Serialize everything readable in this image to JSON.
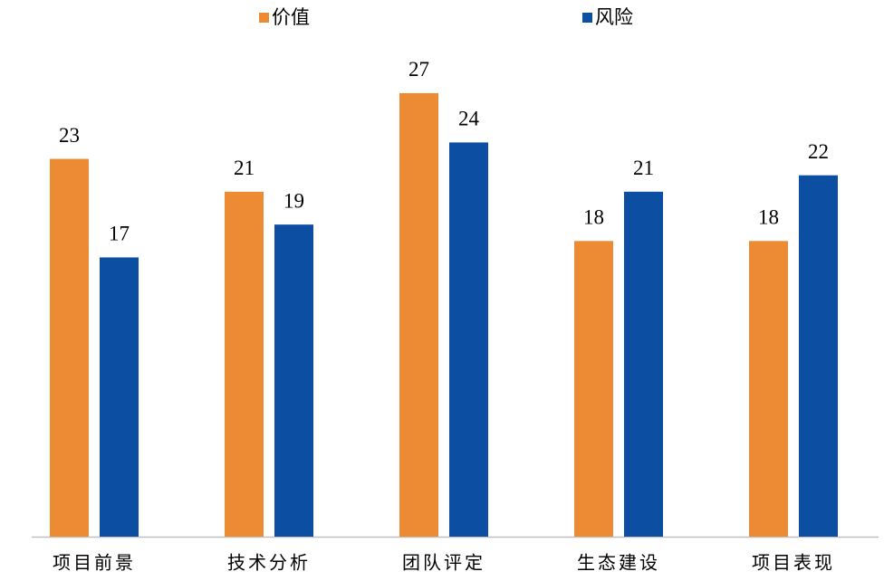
{
  "chart_data": {
    "type": "bar",
    "categories": [
      "项目前景",
      "技术分析",
      "团队评定",
      "生态建设",
      "项目表现"
    ],
    "series": [
      {
        "name": "价值",
        "color": "#ED8B35",
        "values": [
          23,
          21,
          27,
          18,
          18
        ]
      },
      {
        "name": "风险",
        "color": "#0B4EA2",
        "values": [
          17,
          19,
          24,
          21,
          22
        ]
      }
    ],
    "ylim": [
      0,
      30
    ],
    "legend": "top",
    "data_labels": true
  }
}
